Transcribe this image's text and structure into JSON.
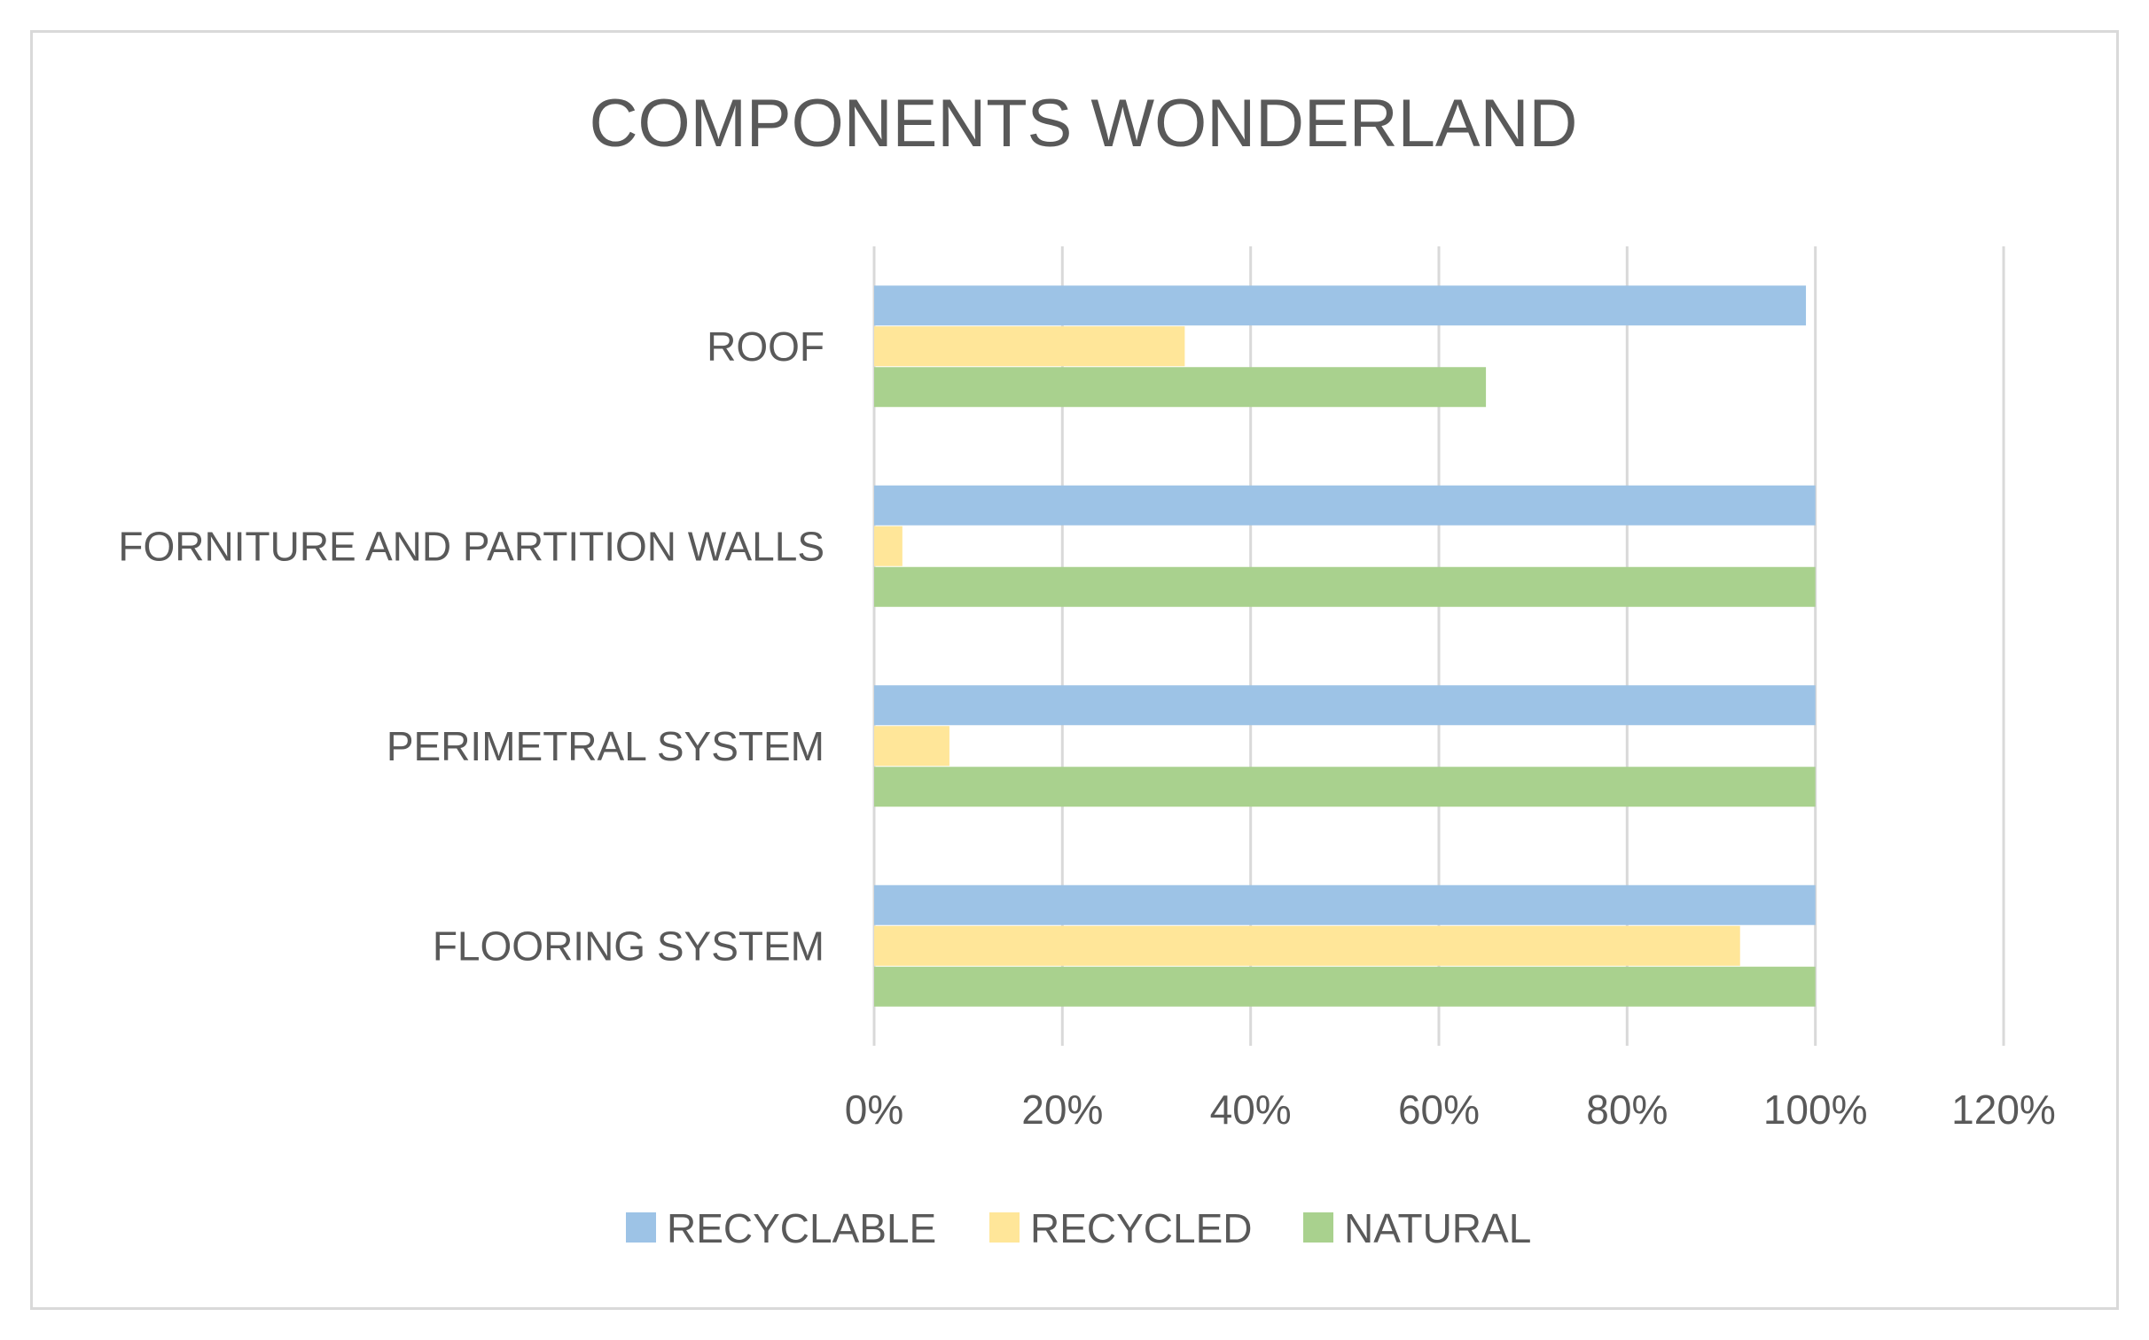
{
  "chart_data": {
    "type": "bar",
    "orientation": "horizontal",
    "title": "COMPONENTS WONDERLAND",
    "xlabel": "",
    "ylabel": "",
    "categories": [
      "ROOF",
      "FORNITURE AND PARTITION WALLS",
      "PERIMETRAL SYSTEM",
      "FLOORING SYSTEM"
    ],
    "series": [
      {
        "name": "RECYCLABLE",
        "color": "#9dc3e6",
        "values": [
          99,
          100,
          100,
          100
        ]
      },
      {
        "name": "RECYCLED",
        "color": "#ffe699",
        "values": [
          33,
          3,
          8,
          92
        ]
      },
      {
        "name": "NATURAL",
        "color": "#a9d18e",
        "values": [
          65,
          100,
          100,
          100
        ]
      }
    ],
    "xlim": [
      0,
      120
    ],
    "x_ticks": [
      0,
      20,
      40,
      60,
      80,
      100,
      120
    ],
    "x_tick_labels": [
      "0%",
      "20%",
      "40%",
      "60%",
      "80%",
      "100%",
      "120%"
    ],
    "grid": "vertical",
    "legend_position": "bottom"
  }
}
